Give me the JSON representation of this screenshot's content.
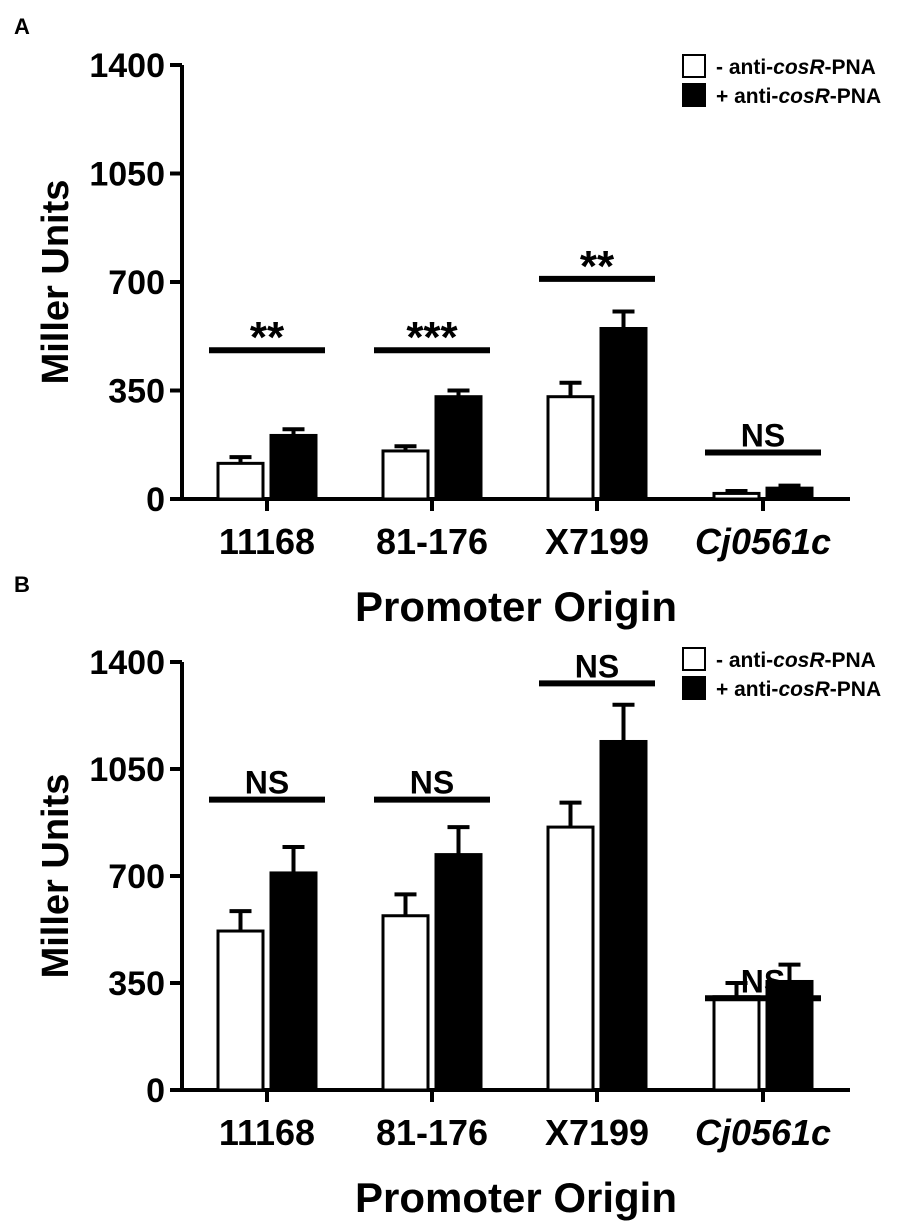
{
  "chart_data": [
    {
      "panel_label": "A",
      "type": "bar",
      "categories": [
        {
          "label": "11168",
          "italic": false
        },
        {
          "label": "81-176",
          "italic": false
        },
        {
          "label": "X7199",
          "italic": false
        },
        {
          "label": "Cj0561c",
          "italic": true
        }
      ],
      "series": [
        {
          "name": "- anti-cosR-PNA",
          "legend_parts": [
            {
              "t": "- anti-",
              "i": false
            },
            {
              "t": "cosR",
              "i": true
            },
            {
              "t": "-PNA",
              "i": false
            }
          ],
          "fill": "#ffffff",
          "values": [
            115,
            155,
            330,
            18
          ],
          "errors": [
            20,
            15,
            45,
            8
          ]
        },
        {
          "name": "+ anti-cosR-PNA",
          "legend_parts": [
            {
              "t": "+ anti-",
              "i": false
            },
            {
              "t": "cosR",
              "i": true
            },
            {
              "t": "-PNA",
              "i": false
            }
          ],
          "fill": "#000000",
          "values": [
            205,
            330,
            550,
            35
          ],
          "errors": [
            20,
            20,
            55,
            8
          ]
        }
      ],
      "significance": [
        "**",
        "***",
        "**",
        "NS"
      ],
      "significance_y": [
        480,
        480,
        710,
        150
      ],
      "ylabel": "Miller Units",
      "xlabel": "Promoter Origin",
      "ylim": [
        0,
        1400
      ],
      "yticks": [
        0,
        350,
        700,
        1050,
        1400
      ],
      "legend_position": "top-right"
    },
    {
      "panel_label": "B",
      "type": "bar",
      "categories": [
        {
          "label": "11168",
          "italic": false
        },
        {
          "label": "81-176",
          "italic": false
        },
        {
          "label": "X7199",
          "italic": false
        },
        {
          "label": "Cj0561c",
          "italic": true
        }
      ],
      "series": [
        {
          "name": "- anti-cosR-PNA",
          "legend_parts": [
            {
              "t": "- anti-",
              "i": false
            },
            {
              "t": "cosR",
              "i": true
            },
            {
              "t": "-PNA",
              "i": false
            }
          ],
          "fill": "#ffffff",
          "values": [
            520,
            570,
            860,
            305
          ],
          "errors": [
            65,
            70,
            80,
            45
          ]
        },
        {
          "name": "+ anti-cosR-PNA",
          "legend_parts": [
            {
              "t": "+ anti-",
              "i": false
            },
            {
              "t": "cosR",
              "i": true
            },
            {
              "t": "-PNA",
              "i": false
            }
          ],
          "fill": "#000000",
          "values": [
            710,
            770,
            1140,
            355
          ],
          "errors": [
            85,
            90,
            120,
            55
          ]
        }
      ],
      "significance": [
        "NS",
        "NS",
        "NS",
        "NS"
      ],
      "significance_y": [
        950,
        950,
        1330,
        300
      ],
      "ylabel": "Miller Units",
      "xlabel": "Promoter Origin",
      "ylim": [
        0,
        1400
      ],
      "yticks": [
        0,
        350,
        700,
        1050,
        1400
      ],
      "legend_position": "top-right"
    }
  ]
}
